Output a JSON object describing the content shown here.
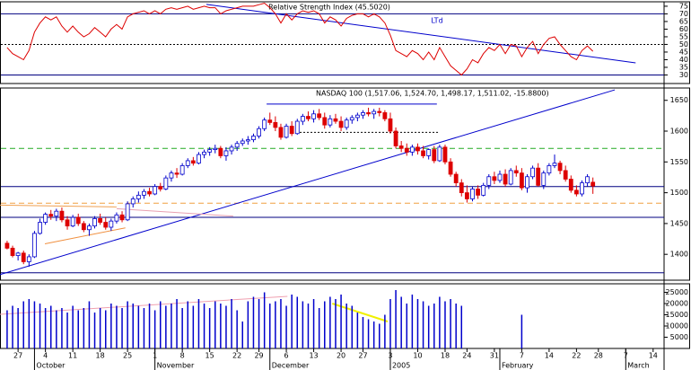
{
  "chart_data": [
    {
      "type": "line",
      "title": "Relative Strength Index (45.5020)",
      "annotation": "LTd",
      "xlim": [
        -1.3,
        120
      ],
      "ylim": [
        24.4,
        77.9
      ],
      "yticks": [
        30,
        35,
        40,
        45,
        50,
        55,
        60,
        65,
        70,
        75
      ],
      "series": [
        {
          "color": "#dd0000",
          "values": [
            48,
            44,
            42,
            40,
            46,
            58,
            64,
            68,
            66,
            68,
            62,
            58,
            62,
            58,
            55,
            57,
            61,
            58,
            55,
            60,
            63,
            60,
            68,
            70,
            71,
            72,
            70,
            72,
            70,
            73,
            74,
            73,
            74,
            75,
            73,
            74,
            75,
            74,
            74,
            70,
            72,
            73,
            74,
            75,
            75,
            75,
            76,
            77,
            74,
            70,
            64,
            70,
            66,
            70,
            72,
            71,
            72,
            70,
            64,
            68,
            66,
            62,
            67,
            69,
            70,
            70,
            68,
            70,
            68,
            64,
            56,
            46,
            44,
            42,
            46,
            44,
            40,
            45,
            40,
            48,
            42,
            36,
            33,
            30,
            34,
            40,
            38,
            44,
            48,
            46,
            50,
            44,
            50,
            49,
            42,
            48,
            52,
            44,
            50,
            54,
            55,
            50,
            46,
            42,
            40,
            46,
            49,
            45.502
          ]
        }
      ],
      "hlines": [
        {
          "value": 70,
          "color": "#000080",
          "style": "solid"
        },
        {
          "value": 50,
          "color": "#000000",
          "style": "dotted"
        },
        {
          "value": 30,
          "color": "#000080",
          "style": "solid"
        }
      ],
      "trendlines": [
        {
          "color": "#0000cc",
          "style": "solid",
          "x": [
            36.4,
            114.8
          ],
          "y": [
            76.2,
            37.9
          ]
        }
      ]
    },
    {
      "type": "candlestick",
      "title": "NASDAQ 100 (1,517.06, 1,524.70, 1,498.17, 1,511.02, -15.8800)",
      "xlim": [
        -1.3,
        120
      ],
      "ylim": [
        1358,
        1670
      ],
      "yticks": [
        1400,
        1450,
        1500,
        1550,
        1600,
        1650
      ],
      "up_color": "#0000cc",
      "down_color": "#dd0000",
      "candles": [
        [
          1418,
          1422,
          1408,
          1410
        ],
        [
          1410,
          1414,
          1395,
          1398
        ],
        [
          1398,
          1404,
          1390,
          1402
        ],
        [
          1402,
          1406,
          1384,
          1388
        ],
        [
          1388,
          1400,
          1380,
          1396
        ],
        [
          1396,
          1438,
          1394,
          1434
        ],
        [
          1434,
          1458,
          1432,
          1452
        ],
        [
          1452,
          1468,
          1448,
          1465
        ],
        [
          1465,
          1472,
          1456,
          1462
        ],
        [
          1462,
          1474,
          1454,
          1470
        ],
        [
          1470,
          1476,
          1452,
          1456
        ],
        [
          1456,
          1462,
          1440,
          1446
        ],
        [
          1446,
          1464,
          1444,
          1460
        ],
        [
          1460,
          1466,
          1446,
          1450
        ],
        [
          1450,
          1454,
          1436,
          1440
        ],
        [
          1440,
          1450,
          1430,
          1446
        ],
        [
          1446,
          1462,
          1442,
          1458
        ],
        [
          1458,
          1466,
          1448,
          1452
        ],
        [
          1452,
          1460,
          1440,
          1444
        ],
        [
          1444,
          1458,
          1438,
          1454
        ],
        [
          1454,
          1468,
          1450,
          1464
        ],
        [
          1464,
          1470,
          1452,
          1456
        ],
        [
          1456,
          1486,
          1454,
          1482
        ],
        [
          1482,
          1494,
          1476,
          1490
        ],
        [
          1490,
          1502,
          1484,
          1496
        ],
        [
          1496,
          1506,
          1490,
          1502
        ],
        [
          1502,
          1508,
          1494,
          1498
        ],
        [
          1498,
          1514,
          1496,
          1510
        ],
        [
          1510,
          1516,
          1502,
          1506
        ],
        [
          1506,
          1528,
          1504,
          1524
        ],
        [
          1524,
          1536,
          1518,
          1532
        ],
        [
          1532,
          1540,
          1524,
          1530
        ],
        [
          1530,
          1548,
          1528,
          1544
        ],
        [
          1544,
          1556,
          1540,
          1552
        ],
        [
          1552,
          1558,
          1544,
          1548
        ],
        [
          1548,
          1566,
          1546,
          1562
        ],
        [
          1562,
          1570,
          1556,
          1566
        ],
        [
          1566,
          1574,
          1560,
          1570
        ],
        [
          1570,
          1578,
          1564,
          1572
        ],
        [
          1572,
          1576,
          1556,
          1560
        ],
        [
          1560,
          1574,
          1552,
          1568
        ],
        [
          1568,
          1578,
          1562,
          1574
        ],
        [
          1574,
          1584,
          1568,
          1580
        ],
        [
          1580,
          1588,
          1576,
          1584
        ],
        [
          1584,
          1592,
          1578,
          1586
        ],
        [
          1586,
          1596,
          1582,
          1592
        ],
        [
          1592,
          1608,
          1588,
          1604
        ],
        [
          1604,
          1622,
          1600,
          1618
        ],
        [
          1618,
          1630,
          1610,
          1614
        ],
        [
          1614,
          1624,
          1600,
          1606
        ],
        [
          1606,
          1612,
          1586,
          1590
        ],
        [
          1590,
          1612,
          1588,
          1608
        ],
        [
          1608,
          1616,
          1592,
          1596
        ],
        [
          1596,
          1620,
          1594,
          1616
        ],
        [
          1616,
          1628,
          1610,
          1624
        ],
        [
          1624,
          1632,
          1616,
          1620
        ],
        [
          1620,
          1634,
          1614,
          1628
        ],
        [
          1628,
          1636,
          1618,
          1622
        ],
        [
          1622,
          1630,
          1604,
          1610
        ],
        [
          1610,
          1626,
          1606,
          1620
        ],
        [
          1620,
          1628,
          1612,
          1616
        ],
        [
          1616,
          1624,
          1600,
          1606
        ],
        [
          1606,
          1622,
          1602,
          1618
        ],
        [
          1618,
          1626,
          1612,
          1622
        ],
        [
          1622,
          1630,
          1616,
          1626
        ],
        [
          1626,
          1634,
          1620,
          1630
        ],
        [
          1630,
          1638,
          1624,
          1628
        ],
        [
          1628,
          1636,
          1620,
          1632
        ],
        [
          1632,
          1638,
          1624,
          1630
        ],
        [
          1630,
          1634,
          1616,
          1620
        ],
        [
          1620,
          1630,
          1596,
          1600
        ],
        [
          1600,
          1606,
          1572,
          1576
        ],
        [
          1576,
          1584,
          1566,
          1572
        ],
        [
          1572,
          1580,
          1560,
          1566
        ],
        [
          1566,
          1578,
          1560,
          1574
        ],
        [
          1574,
          1580,
          1562,
          1568
        ],
        [
          1568,
          1576,
          1556,
          1560
        ],
        [
          1560,
          1572,
          1554,
          1570
        ],
        [
          1570,
          1576,
          1548,
          1552
        ],
        [
          1552,
          1578,
          1550,
          1574
        ],
        [
          1574,
          1578,
          1546,
          1550
        ],
        [
          1550,
          1556,
          1526,
          1530
        ],
        [
          1530,
          1534,
          1510,
          1516
        ],
        [
          1516,
          1522,
          1494,
          1500
        ],
        [
          1500,
          1512,
          1484,
          1490
        ],
        [
          1490,
          1510,
          1486,
          1506
        ],
        [
          1506,
          1512,
          1490,
          1496
        ],
        [
          1496,
          1516,
          1494,
          1512
        ],
        [
          1512,
          1530,
          1506,
          1526
        ],
        [
          1526,
          1534,
          1514,
          1520
        ],
        [
          1520,
          1536,
          1516,
          1530
        ],
        [
          1530,
          1538,
          1510,
          1514
        ],
        [
          1514,
          1540,
          1512,
          1536
        ],
        [
          1536,
          1544,
          1526,
          1532
        ],
        [
          1532,
          1540,
          1504,
          1508
        ],
        [
          1508,
          1530,
          1500,
          1526
        ],
        [
          1526,
          1544,
          1522,
          1540
        ],
        [
          1540,
          1548,
          1510,
          1512
        ],
        [
          1512,
          1536,
          1506,
          1532
        ],
        [
          1532,
          1548,
          1528,
          1544
        ],
        [
          1544,
          1562,
          1540,
          1548
        ],
        [
          1548,
          1552,
          1530,
          1536
        ],
        [
          1536,
          1544,
          1518,
          1522
        ],
        [
          1522,
          1528,
          1500,
          1504
        ],
        [
          1504,
          1512,
          1494,
          1498
        ],
        [
          1498,
          1520,
          1494,
          1516
        ],
        [
          1516,
          1530,
          1510,
          1526
        ],
        [
          1517.06,
          1524.7,
          1498.17,
          1511.02
        ]
      ],
      "hlines": [
        {
          "value": 1572,
          "color": "#22aa22",
          "style": "dashed"
        },
        {
          "value": 1510,
          "color": "#000080",
          "style": "solid"
        },
        {
          "value": 1483,
          "color": "#f0a040",
          "style": "dashed"
        },
        {
          "value": 1460,
          "color": "#000080",
          "style": "solid"
        },
        {
          "value": 1370,
          "color": "#000080",
          "style": "solid"
        }
      ],
      "trendlines": [
        {
          "color": "#0000cc",
          "style": "solid",
          "x": [
            -1.3,
            111
          ],
          "y": [
            1367,
            1667
          ]
        },
        {
          "color": "#0000cc",
          "style": "solid",
          "x": [
            47.4,
            78.5
          ],
          "y": [
            1644,
            1644
          ]
        },
        {
          "color": "#000000",
          "style": "dotted",
          "x": [
            52.8,
            79
          ],
          "y": [
            1598,
            1598
          ]
        },
        {
          "color": "#f09040",
          "style": "solid",
          "x": [
            6.9,
            21.6
          ],
          "y": [
            1417,
            1443
          ]
        },
        {
          "color": "#f0a050",
          "style": "solid",
          "x": [
            -1.3,
            20
          ],
          "y": [
            1480,
            1477
          ]
        },
        {
          "color": "#e8a0b0",
          "style": "solid",
          "x": [
            20,
            41.3
          ],
          "y": [
            1474,
            1462
          ]
        }
      ]
    },
    {
      "type": "bar",
      "xlim": [
        -1.3,
        120
      ],
      "ylim": [
        0,
        28800
      ],
      "yticks": [
        5000,
        10000,
        15000,
        20000,
        25000
      ],
      "color": "#0000cc",
      "values": [
        17000,
        19000,
        18000,
        21000,
        22000,
        21000,
        20000,
        18000,
        19000,
        17000,
        18000,
        16000,
        19000,
        17000,
        18000,
        21000,
        16000,
        18000,
        17000,
        20000,
        19000,
        18000,
        21000,
        20000,
        19000,
        18000,
        20000,
        17000,
        21000,
        19000,
        20000,
        22000,
        18000,
        21000,
        19000,
        22000,
        20000,
        18000,
        21000,
        20000,
        19000,
        22000,
        17000,
        12000,
        21000,
        23000,
        22000,
        25000,
        20000,
        21000,
        22000,
        19000,
        24000,
        23000,
        21000,
        20000,
        22000,
        18000,
        21000,
        23000,
        22000,
        24000,
        20000,
        19000,
        16000,
        14000,
        13000,
        12000,
        11000,
        15000,
        22000,
        26000,
        23000,
        20000,
        24000,
        22000,
        21000,
        19000,
        20000,
        23000,
        21000,
        22000,
        20000,
        19000,
        null,
        null,
        null,
        null,
        null,
        null,
        null,
        null,
        null,
        null,
        15000,
        null,
        null,
        null,
        null,
        null,
        null,
        null,
        null,
        null,
        null,
        null,
        null,
        null
      ],
      "trendlines": [
        {
          "color": "#f0a0b0",
          "style": "solid",
          "x": [
            -1.3,
            51.2
          ],
          "y": [
            15200,
            23200
          ]
        },
        {
          "color": "#f0f000",
          "style": "solid",
          "x": [
            59.4,
            69.5
          ],
          "y": [
            20000,
            12000
          ]
        }
      ],
      "xticks": [
        {
          "value": 2,
          "label": "27"
        },
        {
          "value": 7,
          "label": "4"
        },
        {
          "value": 12,
          "label": "11"
        },
        {
          "value": 17,
          "label": "18"
        },
        {
          "value": 22,
          "label": "25"
        },
        {
          "value": 27,
          "label": "1"
        },
        {
          "value": 32,
          "label": "8"
        },
        {
          "value": 37,
          "label": "15"
        },
        {
          "value": 42,
          "label": "22"
        },
        {
          "value": 46,
          "label": "29"
        },
        {
          "value": 51,
          "label": "6"
        },
        {
          "value": 56,
          "label": "13"
        },
        {
          "value": 61,
          "label": "20"
        },
        {
          "value": 65,
          "label": "27"
        },
        {
          "value": 70,
          "label": "3"
        },
        {
          "value": 75,
          "label": "10"
        },
        {
          "value": 80,
          "label": "18"
        },
        {
          "value": 84,
          "label": "24"
        },
        {
          "value": 89,
          "label": "31"
        },
        {
          "value": 94,
          "label": "7"
        },
        {
          "value": 99,
          "label": "14"
        },
        {
          "value": 104,
          "label": "22"
        },
        {
          "value": 108,
          "label": "28"
        },
        {
          "value": 113,
          "label": "7"
        },
        {
          "value": 118,
          "label": "14"
        }
      ],
      "months": [
        {
          "value": 5,
          "label": "October"
        },
        {
          "value": 27,
          "label": "November"
        },
        {
          "value": 48,
          "label": "December"
        },
        {
          "value": 70,
          "label": "2005"
        },
        {
          "value": 90,
          "label": "February"
        },
        {
          "value": 113,
          "label": "March"
        }
      ]
    }
  ]
}
